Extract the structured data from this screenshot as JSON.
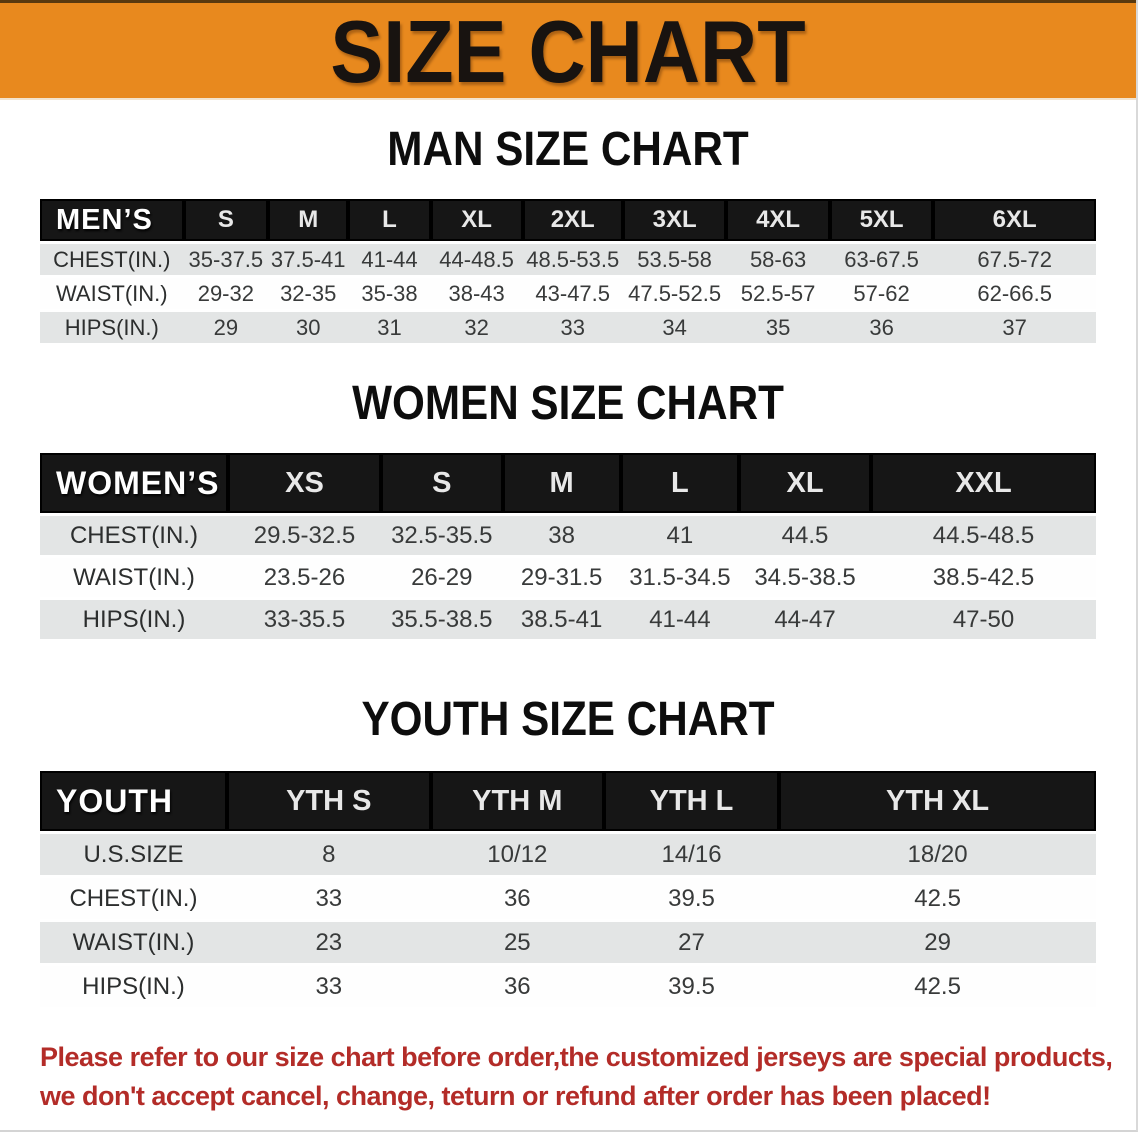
{
  "banner": {
    "title": "SIZE CHART",
    "bg_color": "#e8891e"
  },
  "sections": {
    "men": {
      "heading": "MAN SIZE CHART",
      "group_label": "MEN’S",
      "sizes": [
        "S",
        "M",
        "L",
        "XL",
        "2XL",
        "3XL",
        "4XL",
        "5XL",
        "6XL"
      ],
      "rows": [
        {
          "label": "CHEST(IN.)",
          "values": [
            "35-37.5",
            "37.5-41",
            "41-44",
            "44-48.5",
            "48.5-53.5",
            "53.5-58",
            "58-63",
            "63-67.5",
            "67.5-72"
          ]
        },
        {
          "label": "WAIST(IN.)",
          "values": [
            "29-32",
            "32-35",
            "35-38",
            "38-43",
            "43-47.5",
            "47.5-52.5",
            "52.5-57",
            "57-62",
            "62-66.5"
          ]
        },
        {
          "label": "HIPS(IN.)",
          "values": [
            "29",
            "30",
            "31",
            "32",
            "33",
            "34",
            "35",
            "36",
            "37"
          ]
        }
      ]
    },
    "women": {
      "heading": "WOMEN SIZE CHART",
      "group_label": "WOMEN’S",
      "sizes": [
        "XS",
        "S",
        "M",
        "L",
        "XL",
        "XXL"
      ],
      "rows": [
        {
          "label": "CHEST(IN.)",
          "values": [
            "29.5-32.5",
            "32.5-35.5",
            "38",
            "41",
            "44.5",
            "44.5-48.5"
          ]
        },
        {
          "label": "WAIST(IN.)",
          "values": [
            "23.5-26",
            "26-29",
            "29-31.5",
            "31.5-34.5",
            "34.5-38.5",
            "38.5-42.5"
          ]
        },
        {
          "label": "HIPS(IN.)",
          "values": [
            "33-35.5",
            "35.5-38.5",
            "38.5-41",
            "41-44",
            "44-47",
            "47-50"
          ]
        }
      ]
    },
    "youth": {
      "heading": "YOUTH SIZE CHART",
      "group_label": "YOUTH",
      "sizes": [
        "YTH S",
        "YTH M",
        "YTH L",
        "YTH XL"
      ],
      "rows": [
        {
          "label": "U.S.SIZE",
          "values": [
            "8",
            "10/12",
            "14/16",
            "18/20"
          ]
        },
        {
          "label": "CHEST(IN.)",
          "values": [
            "33",
            "36",
            "39.5",
            "42.5"
          ]
        },
        {
          "label": "WAIST(IN.)",
          "values": [
            "23",
            "25",
            "27",
            "29"
          ]
        },
        {
          "label": "HIPS(IN.)",
          "values": [
            "33",
            "36",
            "39.5",
            "42.5"
          ]
        }
      ]
    }
  },
  "disclaimer": {
    "line1": "Please refer to our size chart before order,the customized jerseys are special products,",
    "line2": "we don't accept cancel, change, teturn or refund after order has been placed!",
    "color": "#b32c28"
  }
}
